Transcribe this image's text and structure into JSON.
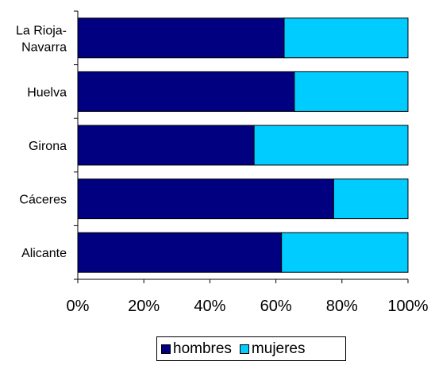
{
  "chart_data": {
    "type": "bar",
    "orientation": "horizontal",
    "stacked": "percent",
    "categories": [
      "La Rioja-Navarra",
      "Huelva",
      "Girona",
      "Cáceres",
      "Alicante"
    ],
    "category_lines": [
      [
        "La Rioja-",
        "Navarra"
      ],
      [
        "Huelva"
      ],
      [
        "Girona"
      ],
      [
        "Cáceres"
      ],
      [
        "Alicante"
      ]
    ],
    "series": [
      {
        "name": "hombres",
        "color": "#000080",
        "values": [
          62.5,
          65.6,
          53.4,
          77.5,
          61.7
        ]
      },
      {
        "name": "mujeres",
        "color": "#00ccff",
        "values": [
          37.5,
          34.4,
          46.6,
          22.5,
          38.3
        ]
      }
    ],
    "xlim": [
      0,
      100
    ],
    "xticks": [
      "0%",
      "20%",
      "40%",
      "60%",
      "80%",
      "100%"
    ],
    "grid": false,
    "legend_position": "bottom"
  }
}
